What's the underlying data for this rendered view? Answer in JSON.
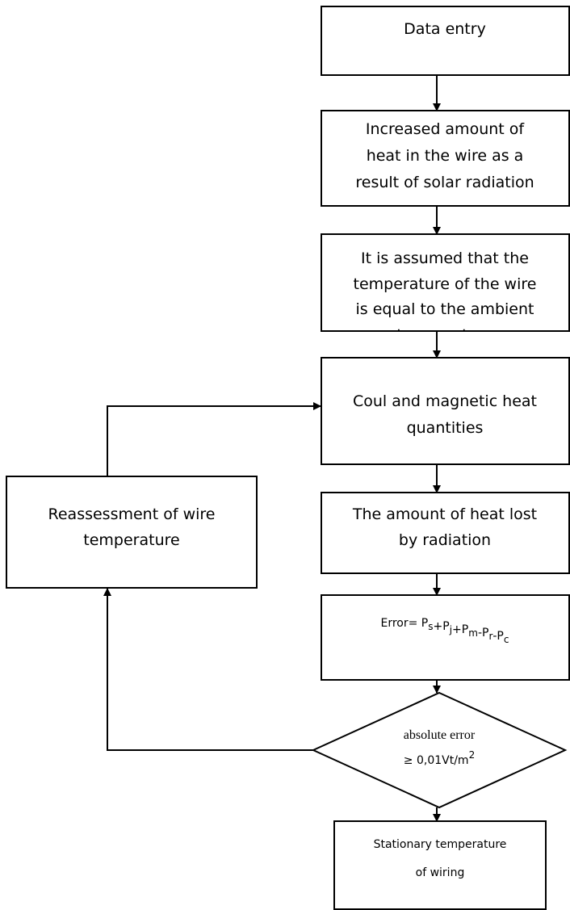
{
  "nodes": {
    "data_entry": {
      "lines": [
        "Data entry"
      ]
    },
    "solar_heat": {
      "lines": [
        "Increased amount of",
        "heat in the wire as a",
        "result of solar radiation"
      ]
    },
    "assumption": {
      "lines": [
        "It is assumed that the",
        "temperature of the wire",
        "is equal to the ambient",
        "temperature"
      ]
    },
    "coul_magnetic": {
      "lines": [
        "Coul and magnetic heat",
        "quantities"
      ]
    },
    "radiation_loss": {
      "lines": [
        "The amount of heat lost",
        "by radiation"
      ]
    },
    "error": {
      "parts": [
        {
          "text": "Error= P",
          "sub": "s"
        },
        {
          "text": "+P",
          "sub": "j"
        },
        {
          "text": "+P",
          "sub": "m"
        },
        {
          "text": "-P",
          "sub": "r"
        },
        {
          "text": "-P",
          "sub": "c"
        }
      ]
    },
    "decision": {
      "lines": [
        "absolute error"
      ],
      "threshold": {
        "text": "≥ 0,01Vt/m",
        "sup": "2"
      }
    },
    "reassessment": {
      "lines": [
        "Reassessment of wire",
        "temperature"
      ]
    },
    "result": {
      "lines": [
        "Stationary temperature",
        "of wiring"
      ]
    }
  }
}
